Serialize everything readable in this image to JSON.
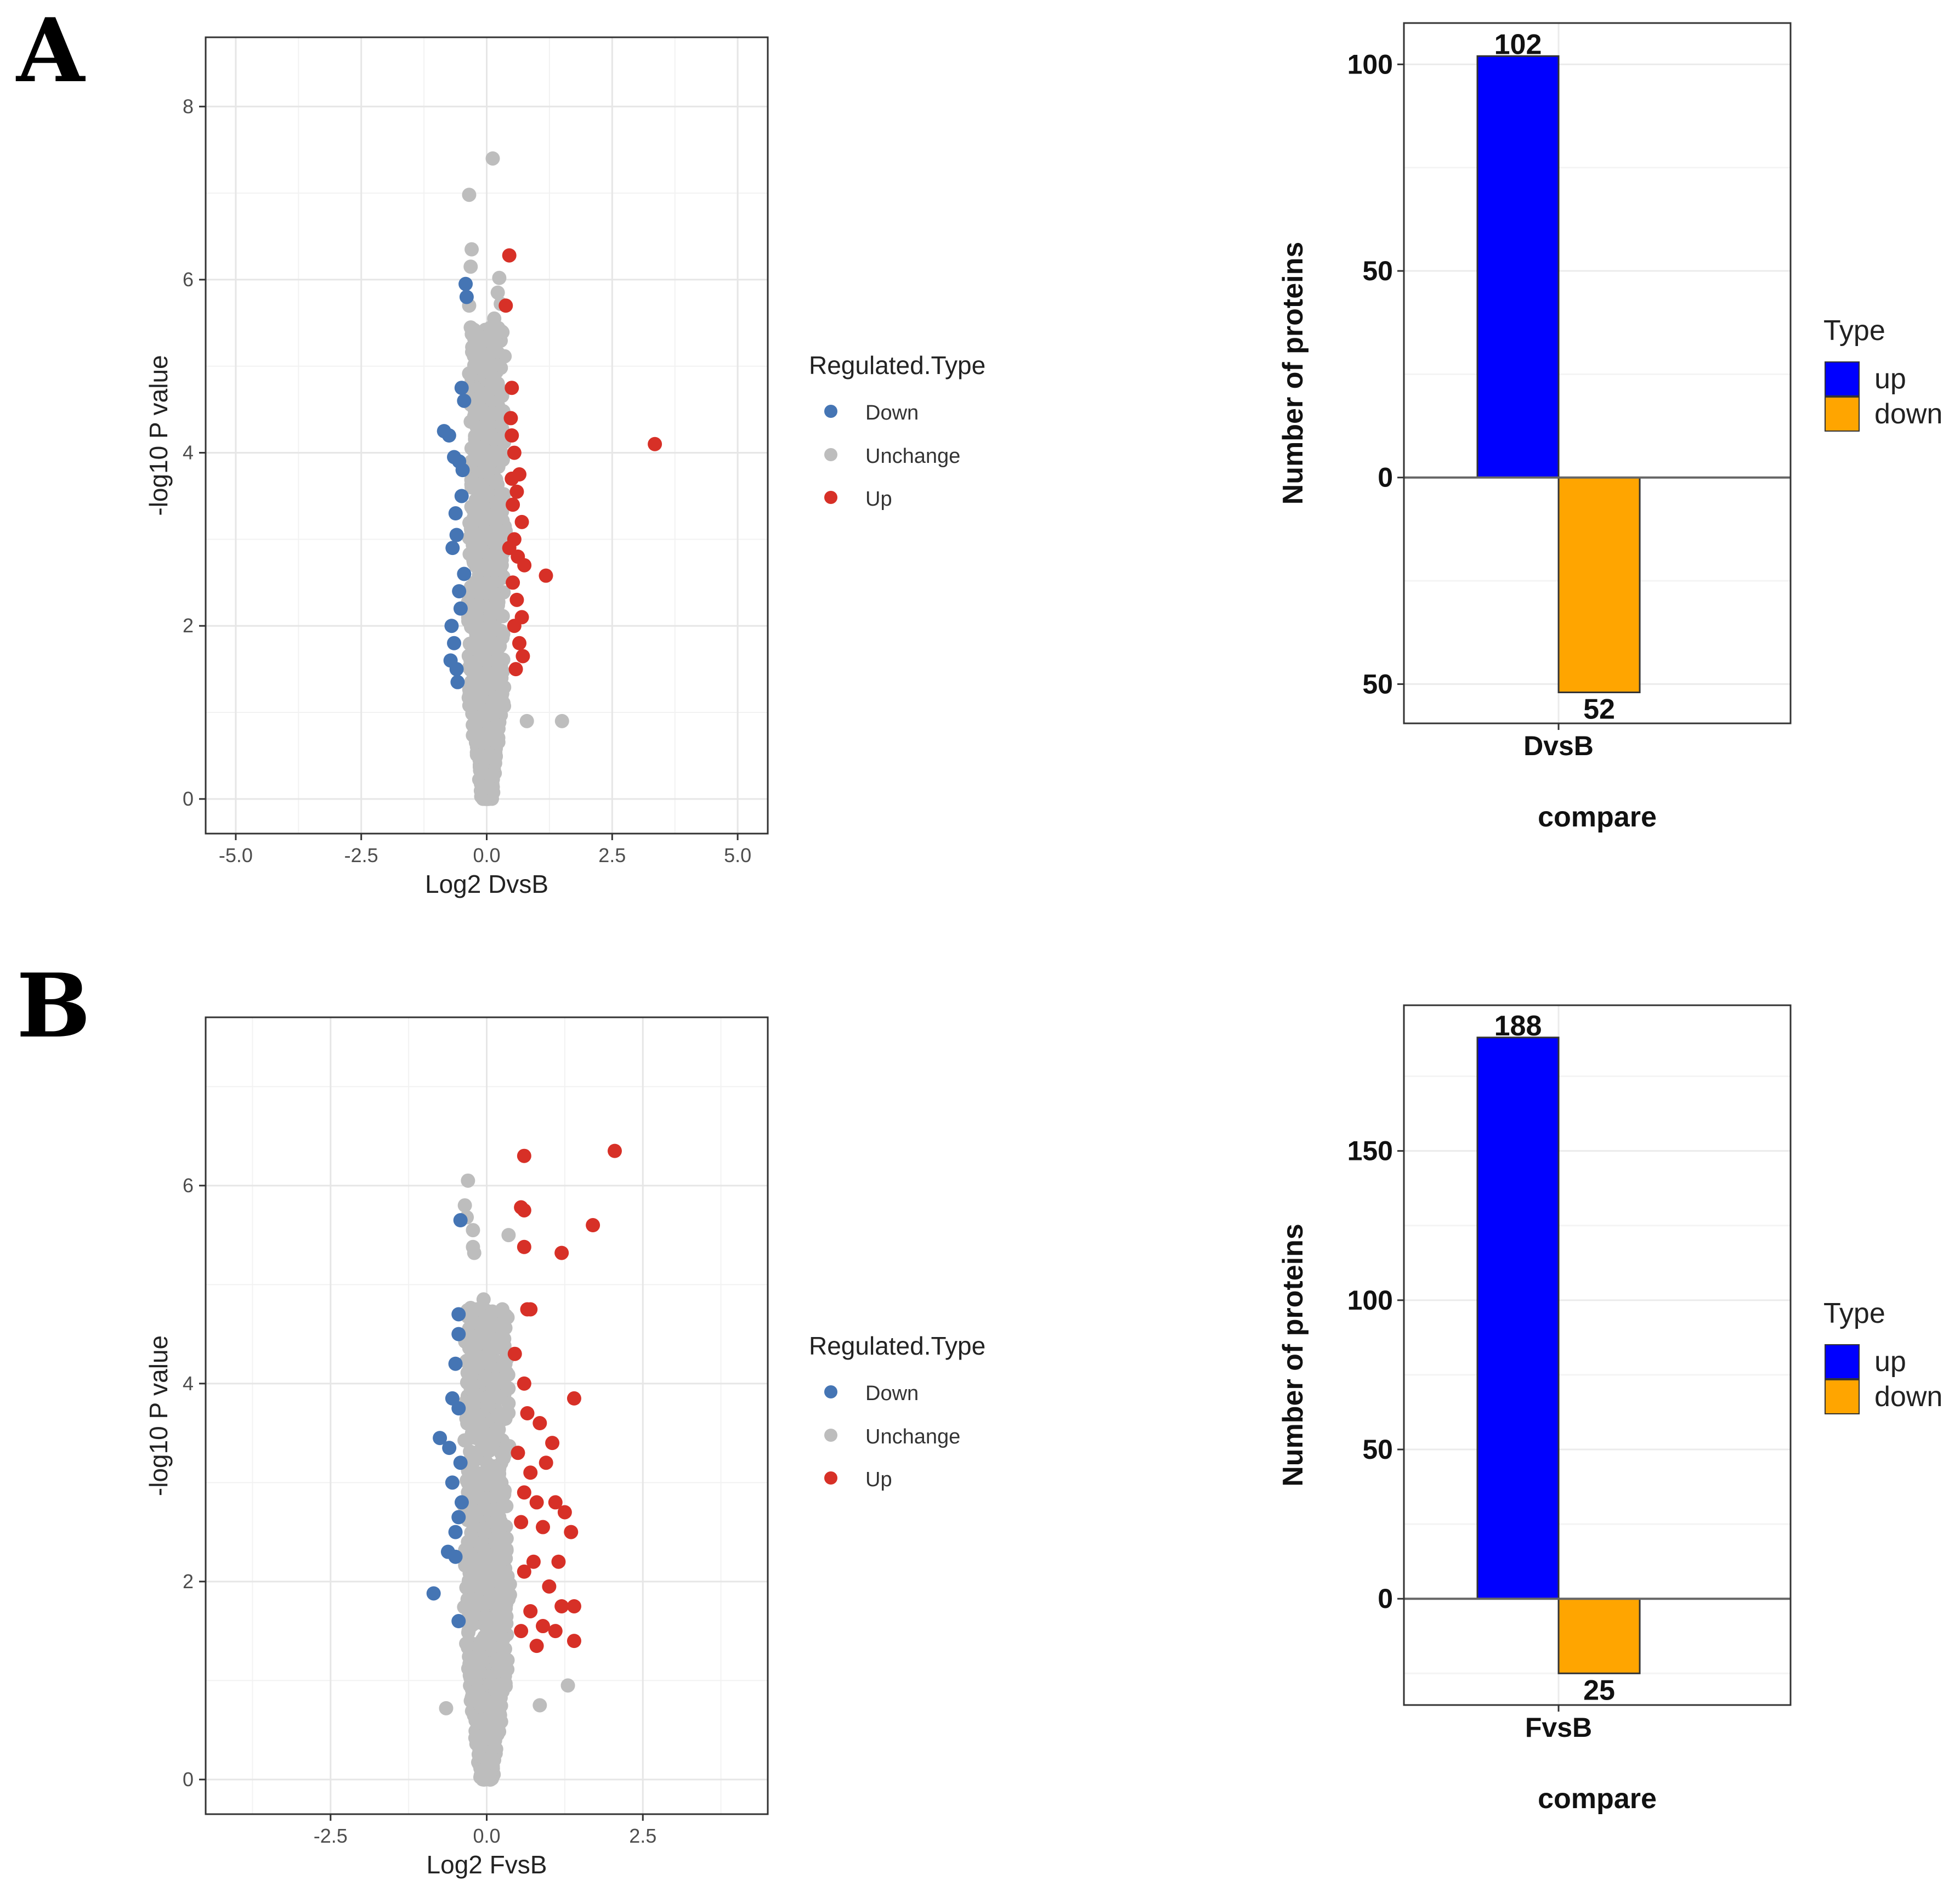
{
  "panels": [
    {
      "label": "A",
      "volcano": {
        "legend_title": "Regulated.Type",
        "legend": [
          {
            "name": "Down",
            "color": "#4575B4"
          },
          {
            "name": "Unchange",
            "color": "#BDBDBD"
          },
          {
            "name": "Up",
            "color": "#D73027"
          }
        ]
      },
      "bar_legend": {
        "title": "Type",
        "items": [
          {
            "name": "up",
            "color": "#0000FF"
          },
          {
            "name": "down",
            "color": "#FFA500"
          }
        ]
      }
    },
    {
      "label": "B",
      "volcano": {
        "legend_title": "Regulated.Type",
        "legend": [
          {
            "name": "Down",
            "color": "#4575B4"
          },
          {
            "name": "Unchange",
            "color": "#BDBDBD"
          },
          {
            "name": "Up",
            "color": "#D73027"
          }
        ]
      },
      "bar_legend": {
        "title": "Type",
        "items": [
          {
            "name": "up",
            "color": "#0000FF"
          },
          {
            "name": "down",
            "color": "#FFA500"
          }
        ]
      }
    }
  ],
  "chart_data": [
    {
      "type": "scatter",
      "id": "volcanoA",
      "xlabel": "Log2 DvsB",
      "ylabel": "-log10 P value",
      "xlim": [
        -5.6,
        5.6
      ],
      "ylim": [
        -0.4,
        8.8
      ],
      "xticks": [
        -5.0,
        -2.5,
        0.0,
        2.5,
        5.0
      ],
      "xtick_labels": [
        "-5.0",
        "-2.5",
        "0.0",
        "2.5",
        "5.0"
      ],
      "yticks": [
        0,
        2,
        4,
        6,
        8
      ],
      "ytick_labels": [
        "0",
        "2",
        "4",
        "6",
        "8"
      ],
      "series": [
        {
          "name": "Down",
          "points": [
            [
              -0.42,
              5.95
            ],
            [
              -0.4,
              5.8
            ],
            [
              -0.85,
              4.25
            ],
            [
              -0.75,
              4.2
            ],
            [
              -0.55,
              3.9
            ],
            [
              -0.48,
              3.8
            ],
            [
              -0.65,
              3.95
            ],
            [
              -0.5,
              3.5
            ],
            [
              -0.62,
              3.3
            ],
            [
              -0.6,
              3.05
            ],
            [
              -0.68,
              2.9
            ],
            [
              -0.45,
              2.6
            ],
            [
              -0.55,
              2.4
            ],
            [
              -0.7,
              2.0
            ],
            [
              -0.65,
              1.8
            ],
            [
              -0.72,
              1.6
            ],
            [
              -0.6,
              1.5
            ],
            [
              -0.58,
              1.35
            ],
            [
              -0.5,
              4.75
            ],
            [
              -0.45,
              4.6
            ],
            [
              -0.52,
              2.2
            ]
          ]
        },
        {
          "name": "Up",
          "points": [
            [
              0.45,
              6.28
            ],
            [
              0.38,
              5.7
            ],
            [
              0.5,
              4.75
            ],
            [
              3.35,
              4.1
            ],
            [
              0.48,
              4.4
            ],
            [
              0.5,
              4.2
            ],
            [
              0.55,
              4.0
            ],
            [
              0.65,
              3.75
            ],
            [
              0.6,
              3.55
            ],
            [
              0.7,
              3.2
            ],
            [
              0.52,
              3.4
            ],
            [
              0.55,
              3.0
            ],
            [
              0.62,
              2.8
            ],
            [
              0.75,
              2.7
            ],
            [
              1.18,
              2.58
            ],
            [
              0.52,
              2.5
            ],
            [
              0.6,
              2.3
            ],
            [
              0.7,
              2.1
            ],
            [
              0.55,
              2.0
            ],
            [
              0.65,
              1.8
            ],
            [
              0.72,
              1.65
            ],
            [
              0.58,
              1.5
            ],
            [
              0.45,
              2.9
            ],
            [
              0.5,
              3.7
            ]
          ]
        },
        {
          "name": "Unchange",
          "points": [
            [
              0.12,
              7.4
            ],
            [
              -0.35,
              6.98
            ],
            [
              -0.3,
              6.35
            ],
            [
              -0.32,
              6.15
            ],
            [
              0.25,
              6.02
            ],
            [
              0.22,
              5.85
            ],
            [
              0.28,
              5.72
            ],
            [
              -0.35,
              5.7
            ],
            [
              0.15,
              5.55
            ],
            [
              0.3,
              5.4
            ],
            [
              -0.25,
              5.42
            ],
            [
              0.22,
              4.8
            ],
            [
              0.28,
              4.7
            ],
            [
              -0.35,
              4.75
            ],
            [
              1.5,
              0.9
            ],
            [
              0.8,
              0.9
            ],
            [
              -0.2,
              4.3
            ],
            [
              -0.1,
              4.5
            ],
            [
              0.1,
              3.9
            ],
            [
              -0.3,
              3.6
            ],
            [
              0.25,
              3.3
            ],
            [
              -0.25,
              2.9
            ],
            [
              0.3,
              2.7
            ],
            [
              -0.2,
              2.5
            ],
            [
              0.2,
              2.3
            ],
            [
              -0.3,
              2.0
            ],
            [
              0.25,
              1.8
            ],
            [
              0.0,
              3.5
            ],
            [
              0.05,
              2.2
            ]
          ]
        }
      ]
    },
    {
      "type": "bar",
      "id": "barA",
      "categories": [
        "DvsB"
      ],
      "series": [
        {
          "name": "up",
          "values": [
            102
          ]
        },
        {
          "name": "down",
          "values": [
            -52
          ]
        }
      ],
      "data_labels": [
        "102",
        "52"
      ],
      "xlabel": "compare",
      "ylabel": "Number of proteins",
      "ylim": [
        -59.5,
        110
      ],
      "yticks": [
        100,
        50,
        0,
        -50
      ],
      "ytick_labels": [
        "100",
        "50",
        "0",
        "50"
      ]
    },
    {
      "type": "scatter",
      "id": "volcanoB",
      "xlabel": "Log2 FvsB",
      "ylabel": "-log10 P value",
      "xlim": [
        -4.5,
        4.5
      ],
      "ylim": [
        -0.35,
        7.7
      ],
      "xticks": [
        -2.5,
        0.0,
        2.5
      ],
      "xtick_labels": [
        "-2.5",
        "0.0",
        "2.5"
      ],
      "yticks": [
        0,
        2,
        4,
        6
      ],
      "ytick_labels": [
        "0",
        "2",
        "4",
        "6"
      ],
      "series": [
        {
          "name": "Down",
          "points": [
            [
              -0.42,
              5.65
            ],
            [
              -0.45,
              4.7
            ],
            [
              -0.45,
              4.5
            ],
            [
              -0.5,
              4.2
            ],
            [
              -0.55,
              3.85
            ],
            [
              -0.45,
              3.75
            ],
            [
              -0.75,
              3.45
            ],
            [
              -0.6,
              3.35
            ],
            [
              -0.42,
              3.2
            ],
            [
              -0.55,
              3.0
            ],
            [
              -0.45,
              2.65
            ],
            [
              -0.5,
              2.5
            ],
            [
              -0.62,
              2.3
            ],
            [
              -0.5,
              2.25
            ],
            [
              -0.85,
              1.88
            ],
            [
              -0.45,
              1.6
            ],
            [
              -0.4,
              2.8
            ]
          ]
        },
        {
          "name": "Up",
          "points": [
            [
              2.05,
              6.35
            ],
            [
              0.6,
              6.3
            ],
            [
              0.55,
              5.78
            ],
            [
              0.6,
              5.75
            ],
            [
              1.7,
              5.6
            ],
            [
              0.6,
              5.38
            ],
            [
              1.2,
              5.32
            ],
            [
              0.65,
              4.75
            ],
            [
              0.7,
              4.75
            ],
            [
              0.45,
              4.3
            ],
            [
              1.4,
              3.85
            ],
            [
              0.6,
              4.0
            ],
            [
              0.65,
              3.7
            ],
            [
              0.85,
              3.6
            ],
            [
              1.05,
              3.4
            ],
            [
              0.95,
              3.2
            ],
            [
              0.7,
              3.1
            ],
            [
              0.6,
              2.9
            ],
            [
              0.8,
              2.8
            ],
            [
              1.1,
              2.8
            ],
            [
              1.25,
              2.7
            ],
            [
              1.35,
              2.5
            ],
            [
              0.9,
              2.55
            ],
            [
              1.15,
              2.2
            ],
            [
              0.75,
              2.2
            ],
            [
              0.6,
              2.1
            ],
            [
              1.0,
              1.95
            ],
            [
              1.2,
              1.75
            ],
            [
              1.4,
              1.75
            ],
            [
              0.7,
              1.7
            ],
            [
              0.9,
              1.55
            ],
            [
              1.1,
              1.5
            ],
            [
              1.4,
              1.4
            ],
            [
              0.8,
              1.35
            ],
            [
              0.55,
              1.5
            ],
            [
              0.5,
              3.3
            ],
            [
              0.55,
              2.6
            ]
          ]
        },
        {
          "name": "Unchange",
          "points": [
            [
              -0.3,
              6.05
            ],
            [
              -0.35,
              5.8
            ],
            [
              -0.32,
              5.68
            ],
            [
              -0.22,
              5.55
            ],
            [
              0.35,
              5.5
            ],
            [
              -0.22,
              5.38
            ],
            [
              -0.2,
              5.32
            ],
            [
              -0.05,
              4.85
            ],
            [
              -0.15,
              4.75
            ],
            [
              0.25,
              4.75
            ],
            [
              -0.1,
              4.5
            ],
            [
              0.3,
              4.2
            ],
            [
              0.35,
              3.8
            ],
            [
              1.3,
              0.95
            ],
            [
              -0.65,
              0.72
            ],
            [
              0.85,
              0.75
            ],
            [
              -0.2,
              3.9
            ],
            [
              0.1,
              3.4
            ],
            [
              -0.25,
              3.0
            ],
            [
              0.2,
              2.6
            ],
            [
              -0.2,
              2.1
            ],
            [
              0.25,
              1.7
            ],
            [
              0.0,
              3.2
            ],
            [
              -0.3,
              2.4
            ],
            [
              0.28,
              2.9
            ]
          ]
        }
      ]
    },
    {
      "type": "bar",
      "id": "barB",
      "categories": [
        "FvsB"
      ],
      "series": [
        {
          "name": "up",
          "values": [
            188
          ]
        },
        {
          "name": "down",
          "values": [
            -25
          ]
        }
      ],
      "data_labels": [
        "188",
        "25"
      ],
      "xlabel": "compare",
      "ylabel": "Number of proteins",
      "ylim": [
        -35.6,
        198.8
      ],
      "yticks": [
        150,
        100,
        50,
        0
      ],
      "ytick_labels": [
        "150",
        "100",
        "50",
        "0"
      ]
    }
  ]
}
